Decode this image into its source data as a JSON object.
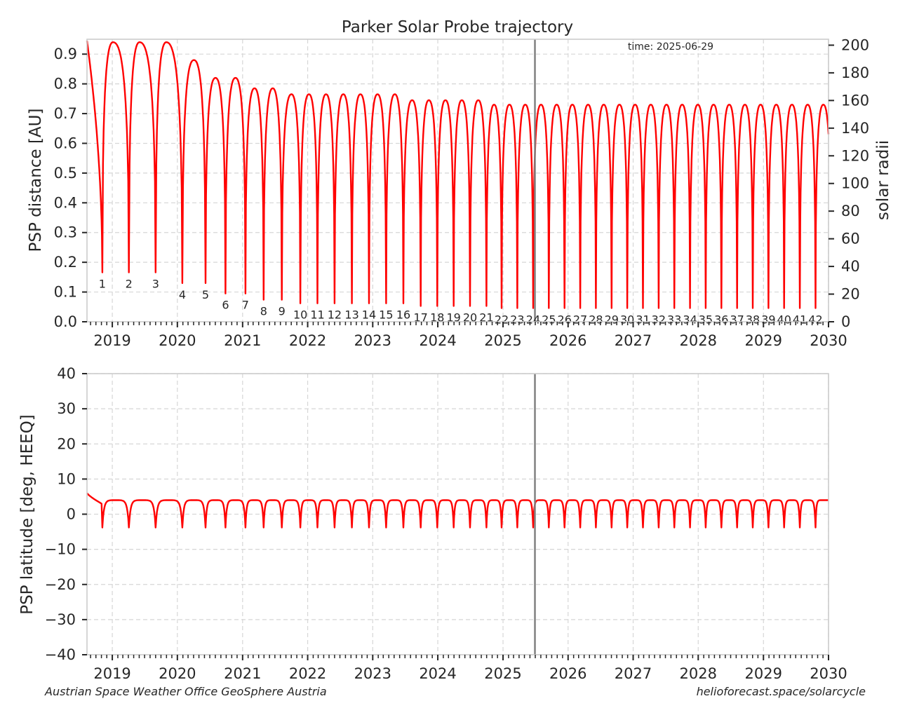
{
  "footer": {
    "left": "Austrian Space Weather Office  GeoSphere Austria",
    "right": "helioforecast.space/solarcycle"
  },
  "colors": {
    "trajectory": "#ff0000",
    "now_line": "#808080",
    "grid": "#d6d6d6",
    "frame": "#cccccc"
  },
  "chart_data": [
    {
      "type": "line",
      "title": "Parker Solar Probe trajectory",
      "annotation": "time: 2025-06-29",
      "current_time": "2025-06-29",
      "xlim": [
        "2018-08-12",
        "2030-01-01"
      ],
      "x_ticks": [
        "2019",
        "2020",
        "2021",
        "2022",
        "2023",
        "2024",
        "2025",
        "2026",
        "2027",
        "2028",
        "2029",
        "2030"
      ],
      "ylabel": "PSP distance [AU]",
      "ylim": [
        0,
        0.95
      ],
      "y_ticks": [
        "0.0",
        "0.1",
        "0.2",
        "0.3",
        "0.4",
        "0.5",
        "0.6",
        "0.7",
        "0.8",
        "0.9"
      ],
      "y2label": "solar radii",
      "y2_ticks": [
        "0",
        "20",
        "40",
        "60",
        "80",
        "100",
        "120",
        "140",
        "160",
        "180",
        "200"
      ],
      "grid": true,
      "start_value": 0.945,
      "series": [
        {
          "perihelia": [
            {
              "n": "1",
              "date": "2018-11-06",
              "r": 0.166
            },
            {
              "n": "2",
              "date": "2019-04-04",
              "r": 0.166
            },
            {
              "n": "3",
              "date": "2019-09-01",
              "r": 0.166
            },
            {
              "n": "4",
              "date": "2020-01-29",
              "r": 0.13
            },
            {
              "n": "5",
              "date": "2020-06-07",
              "r": 0.13
            },
            {
              "n": "6",
              "date": "2020-09-27",
              "r": 0.095
            },
            {
              "n": "7",
              "date": "2021-01-17",
              "r": 0.095
            },
            {
              "n": "8",
              "date": "2021-04-29",
              "r": 0.074
            },
            {
              "n": "9",
              "date": "2021-08-09",
              "r": 0.074
            },
            {
              "n": "10",
              "date": "2021-11-21",
              "r": 0.062
            },
            {
              "n": "11",
              "date": "2022-02-25",
              "r": 0.062
            },
            {
              "n": "12",
              "date": "2022-06-01",
              "r": 0.062
            },
            {
              "n": "13",
              "date": "2022-09-06",
              "r": 0.062
            },
            {
              "n": "14",
              "date": "2022-12-11",
              "r": 0.062
            },
            {
              "n": "15",
              "date": "2023-03-17",
              "r": 0.062
            },
            {
              "n": "16",
              "date": "2023-06-22",
              "r": 0.062
            },
            {
              "n": "17",
              "date": "2023-09-27",
              "r": 0.053
            },
            {
              "n": "18",
              "date": "2023-12-29",
              "r": 0.053
            },
            {
              "n": "19",
              "date": "2024-03-30",
              "r": 0.053
            },
            {
              "n": "20",
              "date": "2024-06-30",
              "r": 0.053
            },
            {
              "n": "21",
              "date": "2024-09-30",
              "r": 0.053
            },
            {
              "n": "22",
              "date": "2024-12-24",
              "r": 0.046
            },
            {
              "n": "23",
              "date": "2025-03-22",
              "r": 0.046
            },
            {
              "n": "24",
              "date": "2025-06-19",
              "r": 0.046
            },
            {
              "n": "25",
              "date": "2025-09-15",
              "r": 0.046
            },
            {
              "n": "26",
              "date": "2025-12-12",
              "r": 0.046
            },
            {
              "n": "27",
              "date": "2026-03-10",
              "r": 0.046
            },
            {
              "n": "28",
              "date": "2026-06-06",
              "r": 0.046
            },
            {
              "n": "29",
              "date": "2026-09-02",
              "r": 0.046
            },
            {
              "n": "30",
              "date": "2026-11-29",
              "r": 0.046
            },
            {
              "n": "31",
              "date": "2027-02-25",
              "r": 0.046
            },
            {
              "n": "32",
              "date": "2027-05-24",
              "r": 0.046
            },
            {
              "n": "33",
              "date": "2027-08-20",
              "r": 0.046
            },
            {
              "n": "34",
              "date": "2027-11-16",
              "r": 0.046
            },
            {
              "n": "35",
              "date": "2028-02-12",
              "r": 0.046
            },
            {
              "n": "36",
              "date": "2028-05-10",
              "r": 0.046
            },
            {
              "n": "37",
              "date": "2028-08-06",
              "r": 0.046
            },
            {
              "n": "38",
              "date": "2028-11-02",
              "r": 0.046
            },
            {
              "n": "39",
              "date": "2029-01-29",
              "r": 0.046
            },
            {
              "n": "40",
              "date": "2029-04-27",
              "r": 0.046
            },
            {
              "n": "41",
              "date": "2029-07-24",
              "r": 0.046
            },
            {
              "n": "42",
              "date": "2029-10-20",
              "r": 0.046
            }
          ],
          "aphelia": [
            {
              "date": "2019-01-05",
              "r": 0.94
            },
            {
              "date": "2019-06-03",
              "r": 0.94
            },
            {
              "date": "2019-10-31",
              "r": 0.94
            },
            {
              "date": "2020-04-03",
              "r": 0.88
            },
            {
              "date": "2020-08-02",
              "r": 0.82
            },
            {
              "date": "2020-11-22",
              "r": 0.82
            },
            {
              "date": "2021-03-09",
              "r": 0.785
            },
            {
              "date": "2021-06-19",
              "r": 0.785
            },
            {
              "date": "2021-10-02",
              "r": 0.765
            },
            {
              "date": "2022-01-08",
              "r": 0.765
            },
            {
              "date": "2022-04-14",
              "r": 0.765
            },
            {
              "date": "2022-07-20",
              "r": 0.765
            },
            {
              "date": "2022-10-24",
              "r": 0.765
            },
            {
              "date": "2023-01-28",
              "r": 0.765
            },
            {
              "date": "2023-05-05",
              "r": 0.765
            },
            {
              "date": "2023-08-10",
              "r": 0.745
            },
            {
              "date": "2023-11-12",
              "r": 0.745
            },
            {
              "date": "2024-02-13",
              "r": 0.745
            },
            {
              "date": "2024-05-15",
              "r": 0.745
            },
            {
              "date": "2024-08-15",
              "r": 0.745
            },
            {
              "date": "2024-11-12",
              "r": 0.73
            },
            {
              "date": "2025-02-06",
              "r": 0.73
            },
            {
              "date": "2025-05-06",
              "r": 0.73
            },
            {
              "date": "2025-08-02",
              "r": 0.73
            },
            {
              "date": "2025-10-29",
              "r": 0.73
            },
            {
              "date": "2026-01-25",
              "r": 0.73
            },
            {
              "date": "2026-04-23",
              "r": 0.73
            },
            {
              "date": "2026-07-20",
              "r": 0.73
            },
            {
              "date": "2026-10-16",
              "r": 0.73
            },
            {
              "date": "2027-01-12",
              "r": 0.73
            },
            {
              "date": "2027-04-10",
              "r": 0.73
            },
            {
              "date": "2027-07-07",
              "r": 0.73
            },
            {
              "date": "2027-10-03",
              "r": 0.73
            },
            {
              "date": "2027-12-30",
              "r": 0.73
            },
            {
              "date": "2028-03-27",
              "r": 0.73
            },
            {
              "date": "2028-06-23",
              "r": 0.73
            },
            {
              "date": "2028-09-19",
              "r": 0.73
            },
            {
              "date": "2028-12-16",
              "r": 0.73
            },
            {
              "date": "2029-03-14",
              "r": 0.73
            },
            {
              "date": "2029-06-10",
              "r": 0.73
            },
            {
              "date": "2029-09-06",
              "r": 0.73
            },
            {
              "date": "2029-12-03",
              "r": 0.73
            }
          ]
        }
      ]
    },
    {
      "type": "line",
      "title": "",
      "xlim": [
        "2018-08-12",
        "2030-01-01"
      ],
      "x_ticks": [
        "2019",
        "2020",
        "2021",
        "2022",
        "2023",
        "2024",
        "2025",
        "2026",
        "2027",
        "2028",
        "2029",
        "2030"
      ],
      "ylabel": "PSP latitude [deg, HEEQ]",
      "ylim": [
        -40,
        40
      ],
      "y_ticks": [
        "40",
        "30",
        "20",
        "10",
        "0",
        "−10",
        "−20",
        "−30",
        "−40"
      ],
      "grid": true,
      "current_time": "2025-06-29",
      "start_value": 6.0,
      "plateau_value": 4.0,
      "minimum_value": -3.8
    }
  ]
}
